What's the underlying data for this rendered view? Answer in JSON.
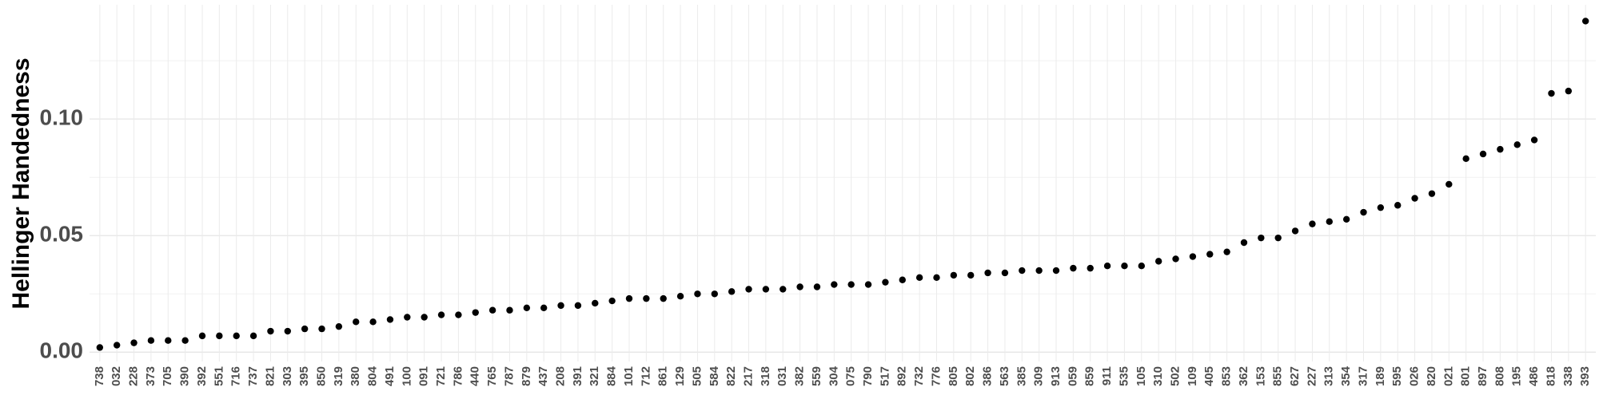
{
  "chart_data": {
    "type": "scatter",
    "y_label": "Hellinger Handedness",
    "categories": [
      "738",
      "032",
      "228",
      "373",
      "705",
      "390",
      "392",
      "551",
      "716",
      "737",
      "821",
      "303",
      "395",
      "850",
      "319",
      "380",
      "804",
      "491",
      "100",
      "091",
      "721",
      "786",
      "440",
      "765",
      "787",
      "879",
      "437",
      "208",
      "391",
      "321",
      "884",
      "101",
      "712",
      "861",
      "129",
      "505",
      "584",
      "822",
      "217",
      "318",
      "031",
      "382",
      "559",
      "304",
      "075",
      "790",
      "517",
      "892",
      "732",
      "776",
      "805",
      "802",
      "386",
      "563",
      "385",
      "309",
      "913",
      "059",
      "859",
      "911",
      "535",
      "105",
      "310",
      "502",
      "109",
      "405",
      "853",
      "362",
      "153",
      "855",
      "627",
      "227",
      "313",
      "354",
      "317",
      "189",
      "595",
      "026",
      "820",
      "021",
      "801",
      "897",
      "808",
      "195",
      "486",
      "818",
      "338",
      "393"
    ],
    "values": [
      0.002,
      0.003,
      0.004,
      0.005,
      0.005,
      0.005,
      0.007,
      0.007,
      0.007,
      0.007,
      0.009,
      0.009,
      0.01,
      0.01,
      0.011,
      0.013,
      0.013,
      0.014,
      0.015,
      0.015,
      0.016,
      0.016,
      0.017,
      0.018,
      0.018,
      0.019,
      0.019,
      0.02,
      0.02,
      0.021,
      0.022,
      0.023,
      0.023,
      0.023,
      0.024,
      0.025,
      0.025,
      0.026,
      0.027,
      0.027,
      0.027,
      0.028,
      0.028,
      0.029,
      0.029,
      0.029,
      0.03,
      0.031,
      0.032,
      0.032,
      0.033,
      0.033,
      0.034,
      0.034,
      0.035,
      0.035,
      0.035,
      0.036,
      0.036,
      0.037,
      0.037,
      0.037,
      0.039,
      0.04,
      0.041,
      0.042,
      0.043,
      0.047,
      0.049,
      0.049,
      0.052,
      0.055,
      0.056,
      0.057,
      0.06,
      0.062,
      0.063,
      0.066,
      0.068,
      0.072,
      0.083,
      0.085,
      0.087,
      0.089,
      0.091,
      0.111,
      0.112,
      0.142
    ],
    "color": "#000000",
    "ylim": [
      -0.004,
      0.149
    ],
    "yticks": [
      {
        "value": 0,
        "label": "0.00"
      },
      {
        "value": 0.05,
        "label": "0.05"
      },
      {
        "value": 0.1,
        "label": "0.10"
      }
    ],
    "y_minor_grid": [
      0.025,
      0.075,
      0.125
    ],
    "grid": true
  }
}
